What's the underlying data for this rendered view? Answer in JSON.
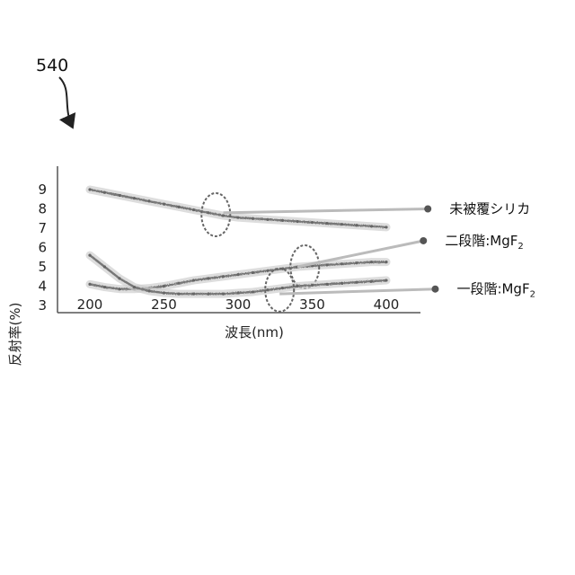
{
  "figure_label": "540",
  "chart_data": {
    "type": "line",
    "title": "",
    "xlabel": "波長(nm)",
    "ylabel": "反射率(%)",
    "xlim": [
      175,
      440
    ],
    "ylim": [
      3,
      9.5
    ],
    "xticks": [
      200,
      250,
      300,
      350,
      400
    ],
    "yticks": [
      3,
      4,
      5,
      6,
      7,
      8,
      9
    ],
    "series": [
      {
        "name": "未被覆シリカ",
        "label_text": "未被覆シリカ",
        "label_sub": "",
        "marker_x": 428,
        "marker_y": 8.0,
        "callout_from": [
          290,
          7.8
        ],
        "ellipse": [
          285,
          7.7
        ],
        "x": [
          200,
          210,
          220,
          230,
          240,
          250,
          260,
          270,
          280,
          290,
          300,
          310,
          320,
          330,
          340,
          350,
          360,
          370,
          380,
          390,
          400
        ],
        "y": [
          9.0,
          8.85,
          8.7,
          8.55,
          8.4,
          8.25,
          8.1,
          7.95,
          7.8,
          7.65,
          7.55,
          7.5,
          7.45,
          7.4,
          7.35,
          7.3,
          7.25,
          7.2,
          7.15,
          7.1,
          7.05
        ]
      },
      {
        "name": "二段階:MgF2",
        "label_text": "二段階:MgF",
        "label_sub": "2",
        "marker_x": 425,
        "marker_y": 6.35,
        "callout_from": [
          340,
          5.0
        ],
        "ellipse": [
          345,
          5.0
        ],
        "x": [
          200,
          210,
          220,
          230,
          240,
          250,
          260,
          270,
          280,
          290,
          300,
          310,
          320,
          330,
          340,
          350,
          360,
          370,
          380,
          390,
          400
        ],
        "y": [
          4.1,
          3.95,
          3.85,
          3.85,
          3.9,
          4.0,
          4.15,
          4.3,
          4.4,
          4.5,
          4.6,
          4.7,
          4.8,
          4.9,
          5.0,
          5.05,
          5.1,
          5.15,
          5.2,
          5.25,
          5.25
        ]
      },
      {
        "name": "一段階:MgF2",
        "label_text": "一段階:MgF",
        "label_sub": "2",
        "marker_x": 433,
        "marker_y": 3.85,
        "callout_from": [
          328,
          3.6
        ],
        "ellipse": [
          328,
          3.8
        ],
        "x": [
          200,
          210,
          220,
          230,
          240,
          250,
          260,
          270,
          280,
          290,
          300,
          310,
          320,
          330,
          340,
          350,
          360,
          370,
          380,
          390,
          400
        ],
        "y": [
          5.6,
          5.0,
          4.4,
          3.95,
          3.75,
          3.65,
          3.6,
          3.6,
          3.6,
          3.6,
          3.65,
          3.7,
          3.8,
          3.9,
          4.0,
          4.05,
          4.1,
          4.15,
          4.2,
          4.25,
          4.3
        ]
      }
    ],
    "grid": false,
    "legend": "inline-right"
  }
}
